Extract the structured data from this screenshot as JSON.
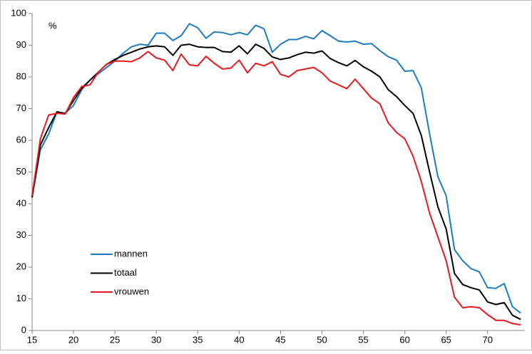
{
  "chart_data": {
    "type": "line",
    "ylabel": "%",
    "x": [
      15,
      16,
      17,
      18,
      19,
      20,
      21,
      22,
      23,
      24,
      25,
      26,
      27,
      28,
      29,
      30,
      31,
      32,
      33,
      34,
      35,
      36,
      37,
      38,
      39,
      40,
      41,
      42,
      43,
      44,
      45,
      46,
      47,
      48,
      49,
      50,
      51,
      52,
      53,
      54,
      55,
      56,
      57,
      58,
      59,
      60,
      61,
      62,
      63,
      64,
      65,
      66,
      67,
      68,
      69,
      70,
      71,
      72,
      73,
      74
    ],
    "xlim": [
      15,
      74.5
    ],
    "xticks": [
      15,
      20,
      25,
      30,
      35,
      40,
      45,
      50,
      55,
      60,
      65,
      70
    ],
    "ylim": [
      0,
      100
    ],
    "yticks": [
      0,
      10,
      20,
      30,
      40,
      50,
      60,
      70,
      80,
      90,
      100
    ],
    "grid": false,
    "legend": "lower left",
    "series": [
      {
        "name": "mannen",
        "color": "#1f7bc0",
        "values": [
          42,
          57,
          62,
          69,
          68.5,
          71,
          76,
          79,
          81,
          83,
          85,
          87.5,
          89.5,
          90.3,
          90,
          93.8,
          93.8,
          91.5,
          93,
          96.8,
          95.5,
          92.2,
          94.2,
          94,
          93.3,
          94,
          93.3,
          96.3,
          95.2,
          87.8,
          90.3,
          91.8,
          91.8,
          92.8,
          92,
          94.6,
          93,
          91.3,
          91,
          91.3,
          90.3,
          90.5,
          88.3,
          86.4,
          85.3,
          81.8,
          82,
          76.5,
          62,
          48.5,
          42.5,
          25.5,
          22,
          19.5,
          18.5,
          13.5,
          13.3,
          14.8,
          7.5,
          5.5
        ]
      },
      {
        "name": "totaal",
        "color": "#000000",
        "values": [
          42,
          58.5,
          64,
          69,
          68.5,
          72.5,
          76.5,
          79,
          81.5,
          84,
          85.5,
          86.8,
          87.8,
          88.8,
          89.5,
          89.8,
          89.5,
          86.8,
          90,
          90.3,
          89.5,
          89.3,
          89.3,
          88,
          87.8,
          89.8,
          87.3,
          90.3,
          89,
          86.3,
          85.5,
          86,
          87,
          87.8,
          87.5,
          88.2,
          85.8,
          84.5,
          83.5,
          85.2,
          83.2,
          81.8,
          80,
          76,
          73.8,
          71,
          68.5,
          61.5,
          50,
          39,
          32,
          18,
          14.5,
          13.5,
          12.8,
          9,
          8.2,
          8.8,
          4.8,
          3.5
        ]
      },
      {
        "name": "vrouwen",
        "color": "#e8191d",
        "values": [
          42.5,
          60.5,
          68,
          68.5,
          68.3,
          73.5,
          77,
          77.5,
          81.5,
          84,
          85,
          85,
          84.8,
          86,
          88,
          86,
          85.3,
          82,
          87.2,
          83.8,
          83.5,
          86.5,
          84.3,
          82.5,
          82.8,
          85.3,
          81.3,
          84.3,
          83.5,
          84.8,
          80.8,
          80,
          82,
          82.5,
          83,
          81.3,
          78.7,
          77.5,
          76.3,
          79.3,
          76.3,
          73.3,
          71.5,
          65.5,
          62.5,
          60.5,
          55,
          47,
          37,
          29.5,
          22,
          10.5,
          7.2,
          7.5,
          7.2,
          5,
          3.2,
          3.2,
          2.2,
          1.8
        ]
      }
    ]
  }
}
